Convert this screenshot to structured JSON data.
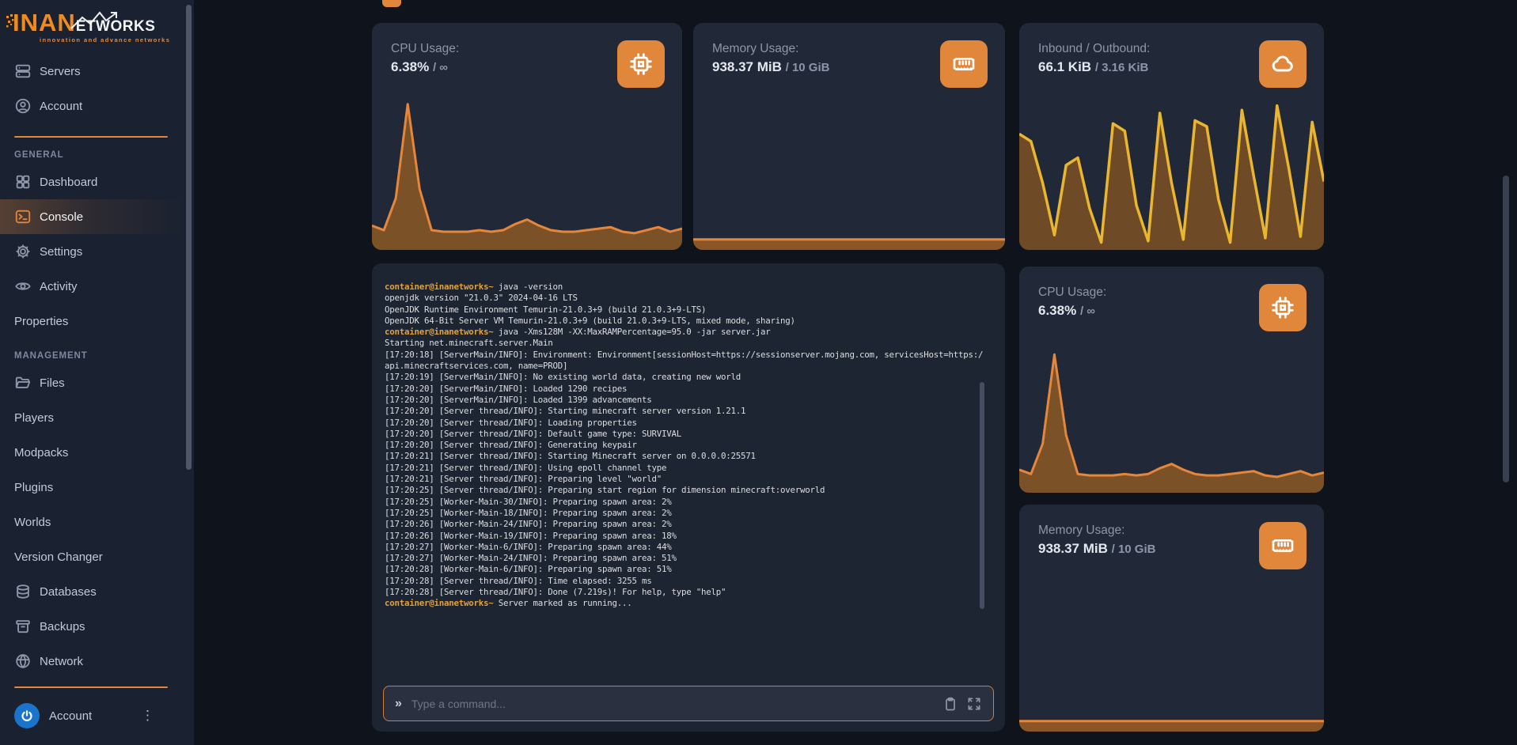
{
  "brand": {
    "primary": "INAN",
    "secondary": "ETWORKS",
    "tagline": "innovation and advance networks"
  },
  "colors": {
    "accent": "#e0873c"
  },
  "sidebar": {
    "top_items": [
      {
        "id": "servers",
        "label": "Servers",
        "icon": "server"
      },
      {
        "id": "account",
        "label": "Account",
        "icon": "user"
      }
    ],
    "sections": [
      {
        "header": "GENERAL",
        "items": [
          {
            "id": "dashboard",
            "label": "Dashboard",
            "icon": "grid"
          },
          {
            "id": "console",
            "label": "Console",
            "icon": "terminal",
            "active": true
          },
          {
            "id": "settings",
            "label": "Settings",
            "icon": "gear"
          },
          {
            "id": "activity",
            "label": "Activity",
            "icon": "eye"
          },
          {
            "id": "properties",
            "label": "Properties"
          }
        ]
      },
      {
        "header": "MANAGEMENT",
        "items": [
          {
            "id": "files",
            "label": "Files",
            "icon": "folder"
          },
          {
            "id": "players",
            "label": "Players"
          },
          {
            "id": "modpacks",
            "label": "Modpacks"
          },
          {
            "id": "plugins",
            "label": "Plugins"
          },
          {
            "id": "worlds",
            "label": "Worlds"
          },
          {
            "id": "version-changer",
            "label": "Version Changer"
          },
          {
            "id": "databases",
            "label": "Databases",
            "icon": "database"
          },
          {
            "id": "backups",
            "label": "Backups",
            "icon": "archive"
          },
          {
            "id": "network",
            "label": "Network",
            "icon": "globe"
          }
        ]
      }
    ],
    "footer": {
      "label": "Account"
    }
  },
  "cards": {
    "cpu_top": {
      "title": "CPU Usage:",
      "value": "6.38%",
      "limit": "/ ∞",
      "icon": "cpu"
    },
    "memory_top": {
      "title": "Memory Usage:",
      "value": "938.37 MiB",
      "limit": "/ 10 GiB",
      "icon": "ram"
    },
    "network": {
      "title": "Inbound / Outbound:",
      "value": "66.1 KiB",
      "limit": "/ 3.16 KiB",
      "icon": "cloud"
    },
    "cpu_side": {
      "title": "CPU Usage:",
      "value": "6.38%",
      "limit": "/ ∞",
      "icon": "cpu"
    },
    "memory_side": {
      "title": "Memory Usage:",
      "value": "938.37 MiB",
      "limit": "/ 10 GiB",
      "icon": "ram"
    }
  },
  "console": {
    "prompt_symbol": "»",
    "input_placeholder": "Type a command...",
    "lines": [
      {
        "prefix": "container@inanetworks~",
        "text": " java -version"
      },
      {
        "text": "openjdk version \"21.0.3\" 2024-04-16 LTS"
      },
      {
        "text": "OpenJDK Runtime Environment Temurin-21.0.3+9 (build 21.0.3+9-LTS)"
      },
      {
        "text": "OpenJDK 64-Bit Server VM Temurin-21.0.3+9 (build 21.0.3+9-LTS, mixed mode, sharing)"
      },
      {
        "prefix": "container@inanetworks~",
        "text": " java -Xms128M -XX:MaxRAMPercentage=95.0 -jar server.jar"
      },
      {
        "text": "Starting net.minecraft.server.Main"
      },
      {
        "text": "[17:20:18] [ServerMain/INFO]: Environment: Environment[sessionHost=https://sessionserver.mojang.com, servicesHost=https://"
      },
      {
        "text": "api.minecraftservices.com, name=PROD]"
      },
      {
        "text": "[17:20:19] [ServerMain/INFO]: No existing world data, creating new world"
      },
      {
        "text": "[17:20:20] [ServerMain/INFO]: Loaded 1290 recipes"
      },
      {
        "text": "[17:20:20] [ServerMain/INFO]: Loaded 1399 advancements"
      },
      {
        "text": "[17:20:20] [Server thread/INFO]: Starting minecraft server version 1.21.1"
      },
      {
        "text": "[17:20:20] [Server thread/INFO]: Loading properties"
      },
      {
        "text": "[17:20:20] [Server thread/INFO]: Default game type: SURVIVAL"
      },
      {
        "text": "[17:20:20] [Server thread/INFO]: Generating keypair"
      },
      {
        "text": "[17:20:21] [Server thread/INFO]: Starting Minecraft server on 0.0.0.0:25571"
      },
      {
        "text": "[17:20:21] [Server thread/INFO]: Using epoll channel type"
      },
      {
        "text": "[17:20:21] [Server thread/INFO]: Preparing level \"world\""
      },
      {
        "text": "[17:20:25] [Server thread/INFO]: Preparing start region for dimension minecraft:overworld"
      },
      {
        "text": "[17:20:25] [Worker-Main-30/INFO]: Preparing spawn area: 2%"
      },
      {
        "text": "[17:20:25] [Worker-Main-18/INFO]: Preparing spawn area: 2%"
      },
      {
        "text": "[17:20:26] [Worker-Main-24/INFO]: Preparing spawn area: 2%"
      },
      {
        "text": "[17:20:26] [Worker-Main-19/INFO]: Preparing spawn area: 18%"
      },
      {
        "text": "[17:20:27] [Worker-Main-6/INFO]: Preparing spawn area: 44%"
      },
      {
        "text": "[17:20:27] [Worker-Main-24/INFO]: Preparing spawn area: 51%"
      },
      {
        "text": "[17:20:28] [Worker-Main-6/INFO]: Preparing spawn area: 51%"
      },
      {
        "text": "[17:20:28] [Server thread/INFO]: Time elapsed: 3255 ms"
      },
      {
        "text": "[17:20:28] [Server thread/INFO]: Done (7.219s)! For help, type \"help\""
      },
      {
        "prefix": "container@inanetworks~",
        "text": " Server marked as running..."
      }
    ]
  },
  "chart_data": {
    "cpu_top": {
      "type": "area",
      "title": "CPU usage sparkline (%)",
      "values": [
        16,
        13,
        34,
        96,
        40,
        13,
        12,
        12,
        12,
        13,
        12,
        13,
        17,
        20,
        16,
        13,
        12,
        12,
        13,
        14,
        15,
        12,
        11,
        13,
        15,
        12,
        14
      ],
      "line_color": "#e5863b",
      "fill_color": "#7b5227",
      "stroke_width": 3
    },
    "cpu_side": {
      "type": "area",
      "title": "CPU usage sparkline (%)",
      "values": [
        16,
        13,
        34,
        96,
        40,
        13,
        12,
        12,
        12,
        13,
        12,
        13,
        17,
        20,
        16,
        13,
        12,
        12,
        13,
        14,
        15,
        12,
        11,
        13,
        15,
        12,
        14
      ],
      "line_color": "#e5863b",
      "fill_color": "#7b5227",
      "stroke_width": 3
    },
    "network": {
      "type": "area",
      "title": "Network inbound/outbound sparkline (%)",
      "values": [
        78,
        73,
        45,
        10,
        57,
        62,
        28,
        5,
        85,
        80,
        30,
        6,
        92,
        45,
        7,
        87,
        83,
        34,
        5,
        94,
        50,
        8,
        97,
        55,
        9,
        86,
        46
      ],
      "line_color": "#eab630",
      "fill_color": "#6e4b26",
      "stroke_width": 3.5
    },
    "memory_top": {
      "type": "area",
      "title": "Memory usage sparkline (%)",
      "values": [
        7,
        7
      ],
      "line_color": "#e5863b",
      "fill_color": "#8a5628",
      "stroke_width": 3
    },
    "memory_side": {
      "type": "area",
      "title": "Memory usage sparkline (%)",
      "values": [
        7,
        7
      ],
      "line_color": "#e5863b",
      "fill_color": "#8a5628",
      "stroke_width": 3
    }
  }
}
